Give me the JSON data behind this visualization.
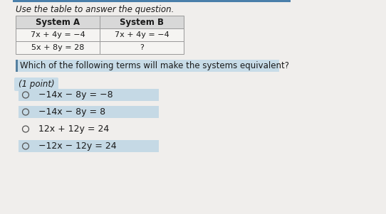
{
  "title_text": "Use the table to answer the question.",
  "table_headers": [
    "System A",
    "System B"
  ],
  "table_row1_a": "7x + 4y = −4",
  "table_row1_b": "7x + 4y = −4",
  "table_row2_a": "5x + 8y = 28",
  "table_row2_b": "?",
  "question_text": "Which of the following terms will make the systems equivalent?",
  "point_text": "(1 point)",
  "options": [
    "−14x − 8y = −8",
    "−14x − 8y = 8",
    "12x + 12y = 24",
    "−12x − 12y = 24"
  ],
  "option_highlighted": [
    true,
    true,
    false,
    true
  ],
  "bg_color": "#e8e8e8",
  "page_color": "#f0eeec",
  "table_header_bg": "#d8d8d8",
  "table_cell_bg": "#f5f4f2",
  "question_bg": "#c8dce8",
  "option_highlight_color": "#c5d9e5",
  "left_bar_color": "#5580a0",
  "top_bar_color": "#4a7faa",
  "text_color": "#1a1a1a",
  "circle_color": "#555555",
  "title_fontsize": 8.5,
  "header_fontsize": 8.5,
  "cell_fontsize": 8.0,
  "question_fontsize": 8.5,
  "option_fontsize": 9.0,
  "point_fontsize": 8.5
}
